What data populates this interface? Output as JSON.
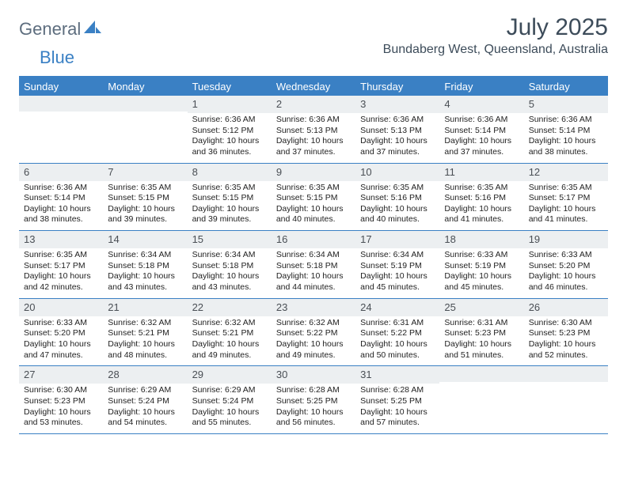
{
  "logo": {
    "part1": "General",
    "part2": "Blue"
  },
  "title": "July 2025",
  "location": "Bundaberg West, Queensland, Australia",
  "colors": {
    "header_bg": "#3a80c4",
    "daynum_bg": "#eceff1",
    "text": "#222222",
    "title_color": "#3d4c5a"
  },
  "day_labels": [
    "Sunday",
    "Monday",
    "Tuesday",
    "Wednesday",
    "Thursday",
    "Friday",
    "Saturday"
  ],
  "weeks": [
    [
      {
        "n": "",
        "l1": "",
        "l2": "",
        "l3": "",
        "l4": ""
      },
      {
        "n": "",
        "l1": "",
        "l2": "",
        "l3": "",
        "l4": ""
      },
      {
        "n": "1",
        "l1": "Sunrise: 6:36 AM",
        "l2": "Sunset: 5:12 PM",
        "l3": "Daylight: 10 hours",
        "l4": "and 36 minutes."
      },
      {
        "n": "2",
        "l1": "Sunrise: 6:36 AM",
        "l2": "Sunset: 5:13 PM",
        "l3": "Daylight: 10 hours",
        "l4": "and 37 minutes."
      },
      {
        "n": "3",
        "l1": "Sunrise: 6:36 AM",
        "l2": "Sunset: 5:13 PM",
        "l3": "Daylight: 10 hours",
        "l4": "and 37 minutes."
      },
      {
        "n": "4",
        "l1": "Sunrise: 6:36 AM",
        "l2": "Sunset: 5:14 PM",
        "l3": "Daylight: 10 hours",
        "l4": "and 37 minutes."
      },
      {
        "n": "5",
        "l1": "Sunrise: 6:36 AM",
        "l2": "Sunset: 5:14 PM",
        "l3": "Daylight: 10 hours",
        "l4": "and 38 minutes."
      }
    ],
    [
      {
        "n": "6",
        "l1": "Sunrise: 6:36 AM",
        "l2": "Sunset: 5:14 PM",
        "l3": "Daylight: 10 hours",
        "l4": "and 38 minutes."
      },
      {
        "n": "7",
        "l1": "Sunrise: 6:35 AM",
        "l2": "Sunset: 5:15 PM",
        "l3": "Daylight: 10 hours",
        "l4": "and 39 minutes."
      },
      {
        "n": "8",
        "l1": "Sunrise: 6:35 AM",
        "l2": "Sunset: 5:15 PM",
        "l3": "Daylight: 10 hours",
        "l4": "and 39 minutes."
      },
      {
        "n": "9",
        "l1": "Sunrise: 6:35 AM",
        "l2": "Sunset: 5:15 PM",
        "l3": "Daylight: 10 hours",
        "l4": "and 40 minutes."
      },
      {
        "n": "10",
        "l1": "Sunrise: 6:35 AM",
        "l2": "Sunset: 5:16 PM",
        "l3": "Daylight: 10 hours",
        "l4": "and 40 minutes."
      },
      {
        "n": "11",
        "l1": "Sunrise: 6:35 AM",
        "l2": "Sunset: 5:16 PM",
        "l3": "Daylight: 10 hours",
        "l4": "and 41 minutes."
      },
      {
        "n": "12",
        "l1": "Sunrise: 6:35 AM",
        "l2": "Sunset: 5:17 PM",
        "l3": "Daylight: 10 hours",
        "l4": "and 41 minutes."
      }
    ],
    [
      {
        "n": "13",
        "l1": "Sunrise: 6:35 AM",
        "l2": "Sunset: 5:17 PM",
        "l3": "Daylight: 10 hours",
        "l4": "and 42 minutes."
      },
      {
        "n": "14",
        "l1": "Sunrise: 6:34 AM",
        "l2": "Sunset: 5:18 PM",
        "l3": "Daylight: 10 hours",
        "l4": "and 43 minutes."
      },
      {
        "n": "15",
        "l1": "Sunrise: 6:34 AM",
        "l2": "Sunset: 5:18 PM",
        "l3": "Daylight: 10 hours",
        "l4": "and 43 minutes."
      },
      {
        "n": "16",
        "l1": "Sunrise: 6:34 AM",
        "l2": "Sunset: 5:18 PM",
        "l3": "Daylight: 10 hours",
        "l4": "and 44 minutes."
      },
      {
        "n": "17",
        "l1": "Sunrise: 6:34 AM",
        "l2": "Sunset: 5:19 PM",
        "l3": "Daylight: 10 hours",
        "l4": "and 45 minutes."
      },
      {
        "n": "18",
        "l1": "Sunrise: 6:33 AM",
        "l2": "Sunset: 5:19 PM",
        "l3": "Daylight: 10 hours",
        "l4": "and 45 minutes."
      },
      {
        "n": "19",
        "l1": "Sunrise: 6:33 AM",
        "l2": "Sunset: 5:20 PM",
        "l3": "Daylight: 10 hours",
        "l4": "and 46 minutes."
      }
    ],
    [
      {
        "n": "20",
        "l1": "Sunrise: 6:33 AM",
        "l2": "Sunset: 5:20 PM",
        "l3": "Daylight: 10 hours",
        "l4": "and 47 minutes."
      },
      {
        "n": "21",
        "l1": "Sunrise: 6:32 AM",
        "l2": "Sunset: 5:21 PM",
        "l3": "Daylight: 10 hours",
        "l4": "and 48 minutes."
      },
      {
        "n": "22",
        "l1": "Sunrise: 6:32 AM",
        "l2": "Sunset: 5:21 PM",
        "l3": "Daylight: 10 hours",
        "l4": "and 49 minutes."
      },
      {
        "n": "23",
        "l1": "Sunrise: 6:32 AM",
        "l2": "Sunset: 5:22 PM",
        "l3": "Daylight: 10 hours",
        "l4": "and 49 minutes."
      },
      {
        "n": "24",
        "l1": "Sunrise: 6:31 AM",
        "l2": "Sunset: 5:22 PM",
        "l3": "Daylight: 10 hours",
        "l4": "and 50 minutes."
      },
      {
        "n": "25",
        "l1": "Sunrise: 6:31 AM",
        "l2": "Sunset: 5:23 PM",
        "l3": "Daylight: 10 hours",
        "l4": "and 51 minutes."
      },
      {
        "n": "26",
        "l1": "Sunrise: 6:30 AM",
        "l2": "Sunset: 5:23 PM",
        "l3": "Daylight: 10 hours",
        "l4": "and 52 minutes."
      }
    ],
    [
      {
        "n": "27",
        "l1": "Sunrise: 6:30 AM",
        "l2": "Sunset: 5:23 PM",
        "l3": "Daylight: 10 hours",
        "l4": "and 53 minutes."
      },
      {
        "n": "28",
        "l1": "Sunrise: 6:29 AM",
        "l2": "Sunset: 5:24 PM",
        "l3": "Daylight: 10 hours",
        "l4": "and 54 minutes."
      },
      {
        "n": "29",
        "l1": "Sunrise: 6:29 AM",
        "l2": "Sunset: 5:24 PM",
        "l3": "Daylight: 10 hours",
        "l4": "and 55 minutes."
      },
      {
        "n": "30",
        "l1": "Sunrise: 6:28 AM",
        "l2": "Sunset: 5:25 PM",
        "l3": "Daylight: 10 hours",
        "l4": "and 56 minutes."
      },
      {
        "n": "31",
        "l1": "Sunrise: 6:28 AM",
        "l2": "Sunset: 5:25 PM",
        "l3": "Daylight: 10 hours",
        "l4": "and 57 minutes."
      },
      {
        "n": "",
        "l1": "",
        "l2": "",
        "l3": "",
        "l4": ""
      },
      {
        "n": "",
        "l1": "",
        "l2": "",
        "l3": "",
        "l4": ""
      }
    ]
  ]
}
